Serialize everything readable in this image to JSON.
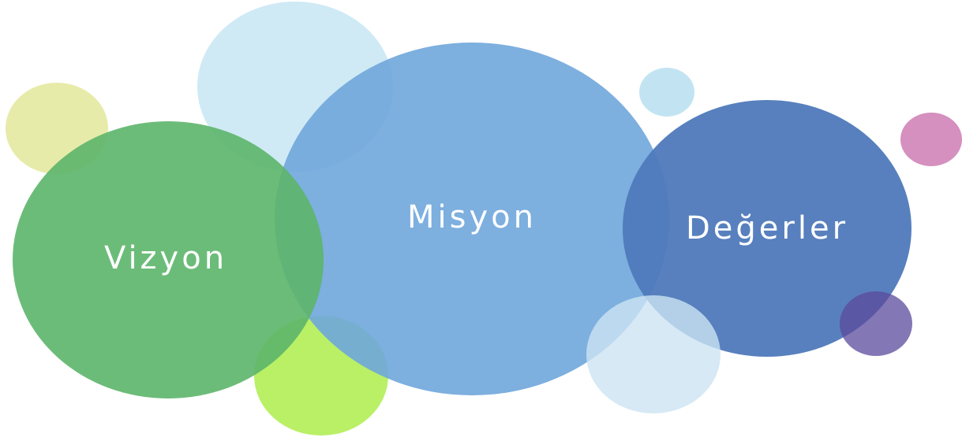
{
  "bubbles": [
    {
      "label": "Vizyon"
    },
    {
      "label": "Misyon"
    },
    {
      "label": "Değerler"
    }
  ]
}
